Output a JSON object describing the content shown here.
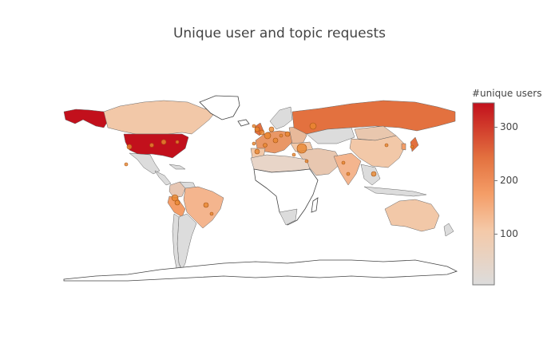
{
  "title": "Unique user and topic requests",
  "colorbar": {
    "title": "#unique users",
    "ticks": [
      {
        "label": "300",
        "value": 300
      },
      {
        "label": "200",
        "value": 200
      },
      {
        "label": "100",
        "value": 100
      }
    ],
    "range": [
      0,
      345
    ],
    "colors": [
      "#dcdcdc",
      "#f4c9a8",
      "#f49d67",
      "#e3713f",
      "#c2101c"
    ]
  },
  "colors": {
    "land_default": "#dedede",
    "coastline": "#444444",
    "bubble_fill": "#e8872f",
    "bubble_stroke": "#a45212"
  }
}
